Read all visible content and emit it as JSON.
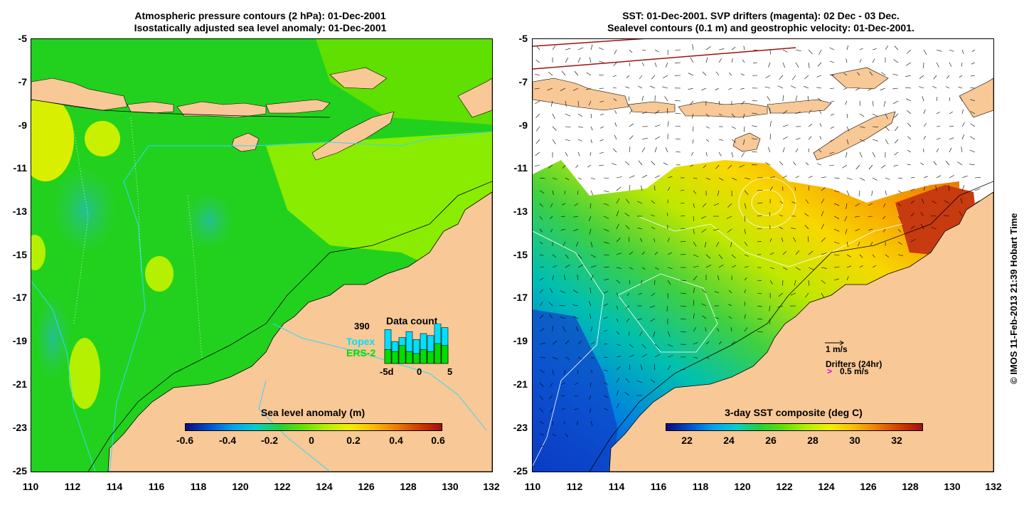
{
  "left_map": {
    "title_line1": "Atmospheric pressure contours (2 hPa): 01-Dec-2001",
    "title_line2": "Isostatically adjusted sea level anomaly: 01-Dec-2001",
    "yticks": [
      "-5",
      "-7",
      "-9",
      "-11",
      "-13",
      "-15",
      "-17",
      "-19",
      "-21",
      "-23",
      "-25"
    ],
    "xticks": [
      "110",
      "112",
      "114",
      "116",
      "118",
      "120",
      "122",
      "124",
      "126",
      "128",
      "130",
      "132"
    ],
    "colorbar": {
      "label": "Sea level anomaly (m)",
      "ticks": [
        "-0.6",
        "-0.4",
        "-0.2",
        "0",
        "0.2",
        "0.4",
        "0.6"
      ]
    },
    "data_count": {
      "title": "Data count",
      "max_label": "390",
      "topex_label": "Topex",
      "ers_label": "ERS-2",
      "xticks": [
        "-5d",
        "0",
        "5"
      ],
      "topex_values": [
        0.85,
        0.55,
        0.65,
        0.8,
        0.6,
        0.75,
        0.7,
        1.0,
        0.9
      ],
      "ers_values": [
        0.35,
        0.3,
        0.45,
        0.3,
        0.25,
        0.35,
        0.3,
        0.5,
        0.45
      ]
    },
    "colors": {
      "topex": "#00e0ff",
      "ers": "#00dd00"
    }
  },
  "right_map": {
    "title_line1": "SST: 01-Dec-2001. SVP drifters (magenta): 02 Dec - 03 Dec.",
    "title_line2": "Sealevel contours (0.1 m) and geostrophic velocity: 01-Dec-2001.",
    "yticks": [
      "-5",
      "-7",
      "-9",
      "-11",
      "-13",
      "-15",
      "-17",
      "-19",
      "-21",
      "-23",
      "-25"
    ],
    "xticks": [
      "110",
      "112",
      "114",
      "116",
      "118",
      "120",
      "122",
      "124",
      "126",
      "128",
      "130",
      "132"
    ],
    "colorbar": {
      "label": "3-day SST composite (deg C)",
      "ticks": [
        "22",
        "24",
        "26",
        "28",
        "30",
        "32"
      ]
    },
    "legend": {
      "velocity_scale": "1 m/s",
      "drifters_title": "Drifters (24hr)",
      "drifter_scale": "0.5 m/s"
    }
  },
  "credit": "© IMOS 11-Feb-2013 21:39 Hobart Time"
}
